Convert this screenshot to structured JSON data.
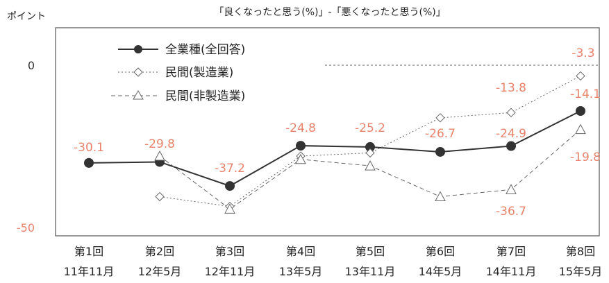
{
  "chart_data": {
    "type": "line",
    "title": "「良くなったと思う(%)」-「悪くなったと思う(%)」",
    "ylabel": "ポイント",
    "ylim": [
      -50,
      0
    ],
    "yticks": [
      {
        "value": 0,
        "label": "0",
        "color": "#333333"
      },
      {
        "value": -50,
        "label": "-50",
        "color": "#e8836b"
      }
    ],
    "categories": [
      {
        "top": "第1回",
        "bottom": "11年11月"
      },
      {
        "top": "第2回",
        "bottom": "12年5月"
      },
      {
        "top": "第3回",
        "bottom": "12年11月"
      },
      {
        "top": "第4回",
        "bottom": "13年5月"
      },
      {
        "top": "第5回",
        "bottom": "13年11月"
      },
      {
        "top": "第6回",
        "bottom": "14年5月"
      },
      {
        "top": "第7回",
        "bottom": "14年11月"
      },
      {
        "top": "第8回",
        "bottom": "15年5月"
      }
    ],
    "series": [
      {
        "name": "全業種(全回答)",
        "style": "solid-circle",
        "color": "#333333",
        "values": [
          -30.1,
          -29.8,
          -37.2,
          -24.8,
          -25.2,
          -26.7,
          -24.9,
          -14.1
        ]
      },
      {
        "name": "民間(製造業)",
        "style": "dotted-diamond",
        "color": "#666666",
        "values": [
          null,
          -40.5,
          -43.5,
          -28.0,
          -27.0,
          -16.2,
          -14.6,
          -3.3
        ]
      },
      {
        "name": "民間(非製造業)",
        "style": "dashed-triangle",
        "color": "#666666",
        "values": [
          null,
          -28.0,
          -44.3,
          -29.0,
          -31.0,
          -40.5,
          -38.3,
          -19.8
        ]
      }
    ],
    "data_labels": [
      "-30.1",
      "-29.8",
      "-37.2",
      "-24.8",
      "-25.2",
      "-26.7",
      "-24.9",
      "-14.1",
      "-3.3",
      "-13.8",
      "-36.7",
      "-19.8"
    ],
    "label_color": "#e8836b",
    "zero_line": "dashed",
    "legend_position": "top-left"
  }
}
